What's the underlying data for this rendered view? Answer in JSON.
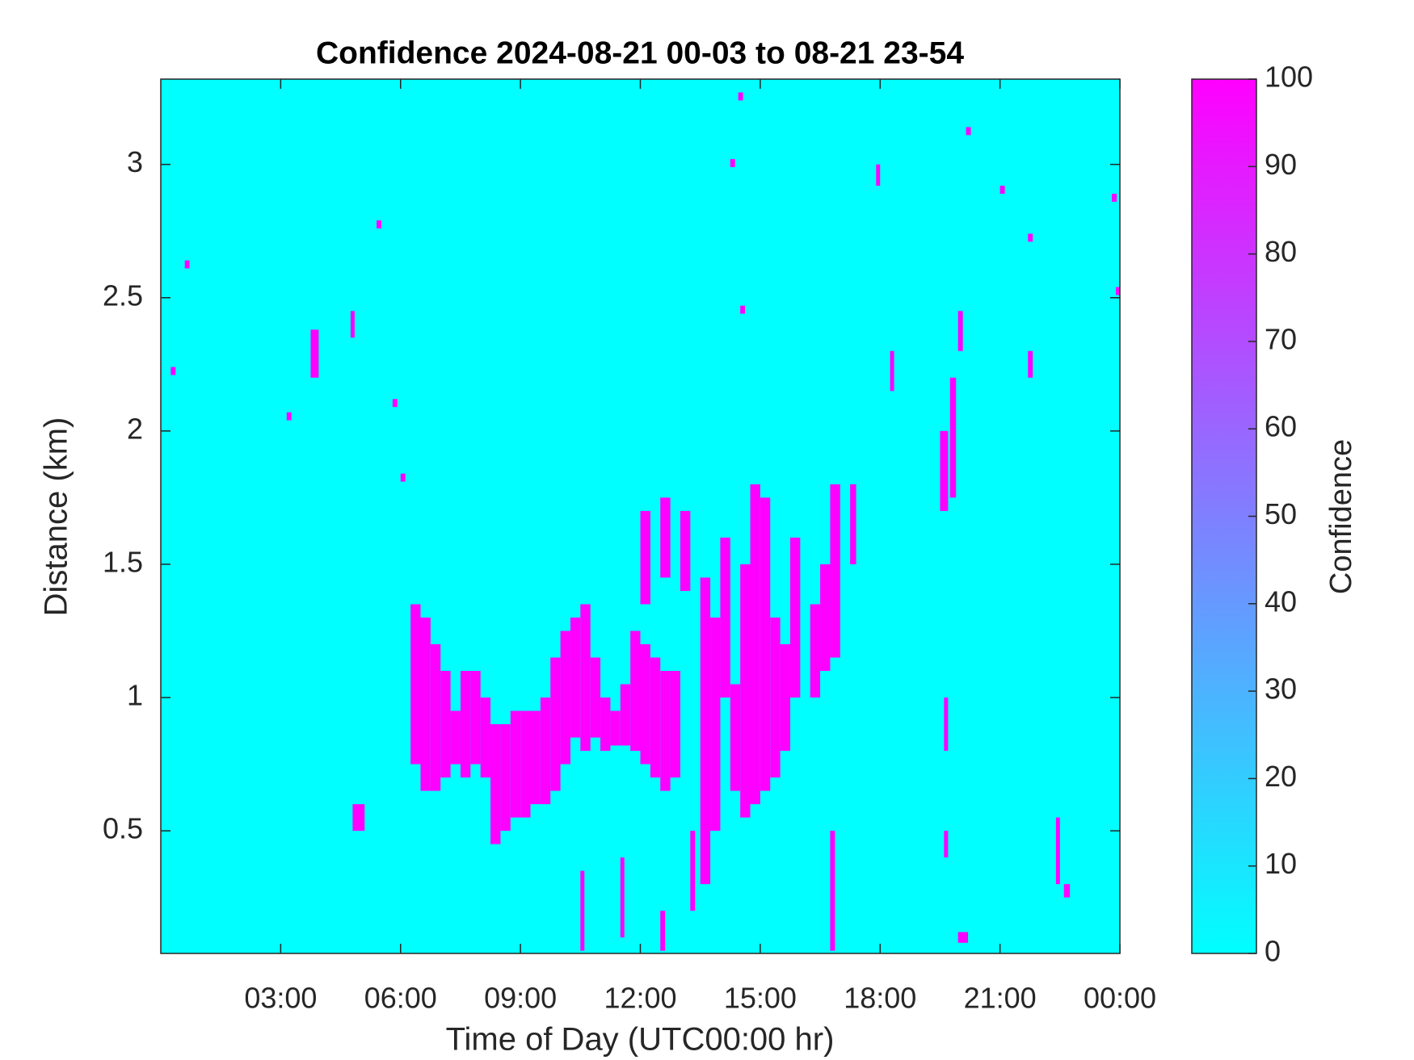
{
  "chart_data": {
    "type": "heatmap",
    "title": "Confidence 2024-08-21 00-03 to 08-21 23-54",
    "xlabel": "Time of Day (UTC00:00 hr)",
    "ylabel": "Distance (km)",
    "colorbar_label": "Confidence",
    "colormap": [
      "#00ffff",
      "#ff00ff"
    ],
    "clim": [
      0,
      100
    ],
    "colorbar_ticks": [
      0,
      10,
      20,
      30,
      40,
      50,
      60,
      70,
      80,
      90,
      100
    ],
    "xlim": [
      0,
      24
    ],
    "ylim": [
      0.04,
      3.32
    ],
    "xticks": [
      {
        "value": 3,
        "label": "03:00"
      },
      {
        "value": 6,
        "label": "06:00"
      },
      {
        "value": 9,
        "label": "09:00"
      },
      {
        "value": 12,
        "label": "12:00"
      },
      {
        "value": 15,
        "label": "15:00"
      },
      {
        "value": 18,
        "label": "18:00"
      },
      {
        "value": 21,
        "label": "21:00"
      },
      {
        "value": 24,
        "label": "00:00"
      }
    ],
    "yticks": [
      0.5,
      1,
      1.5,
      2,
      2.5,
      3
    ],
    "cells": [
      [
        6.25,
        6.5,
        0.75,
        1.35,
        100
      ],
      [
        6.5,
        6.75,
        0.65,
        1.3,
        100
      ],
      [
        6.75,
        7.0,
        0.65,
        1.2,
        100
      ],
      [
        7.0,
        7.25,
        0.7,
        1.1,
        100
      ],
      [
        7.25,
        7.5,
        0.75,
        0.95,
        100
      ],
      [
        7.5,
        7.75,
        0.7,
        1.1,
        100
      ],
      [
        7.75,
        8.0,
        0.75,
        1.1,
        100
      ],
      [
        8.0,
        8.25,
        0.7,
        1.0,
        100
      ],
      [
        8.25,
        8.5,
        0.45,
        0.9,
        100
      ],
      [
        8.5,
        8.75,
        0.5,
        0.9,
        100
      ],
      [
        8.75,
        9.0,
        0.55,
        0.95,
        100
      ],
      [
        9.0,
        9.25,
        0.55,
        0.95,
        100
      ],
      [
        9.25,
        9.5,
        0.6,
        0.95,
        100
      ],
      [
        9.5,
        9.75,
        0.6,
        1.0,
        100
      ],
      [
        9.75,
        10.0,
        0.65,
        1.15,
        100
      ],
      [
        10.0,
        10.25,
        0.75,
        1.25,
        100
      ],
      [
        10.25,
        10.5,
        0.85,
        1.3,
        100
      ],
      [
        10.5,
        10.75,
        0.8,
        1.35,
        100
      ],
      [
        10.75,
        11.0,
        0.85,
        1.15,
        100
      ],
      [
        11.0,
        11.25,
        0.8,
        1.0,
        100
      ],
      [
        11.25,
        11.5,
        0.82,
        0.95,
        100
      ],
      [
        11.5,
        11.75,
        0.82,
        1.05,
        100
      ],
      [
        11.75,
        12.0,
        0.8,
        1.25,
        100
      ],
      [
        12.0,
        12.25,
        0.75,
        1.2,
        100
      ],
      [
        12.25,
        12.5,
        0.7,
        1.15,
        100
      ],
      [
        12.5,
        12.75,
        0.65,
        1.1,
        100
      ],
      [
        12.75,
        13.0,
        0.7,
        1.1,
        100
      ],
      [
        12.0,
        12.25,
        1.35,
        1.7,
        100
      ],
      [
        12.5,
        12.75,
        1.45,
        1.75,
        100
      ],
      [
        13.0,
        13.25,
        1.4,
        1.7,
        100
      ],
      [
        13.5,
        13.75,
        0.3,
        1.45,
        100
      ],
      [
        13.75,
        14.0,
        0.5,
        1.3,
        100
      ],
      [
        14.0,
        14.25,
        1.0,
        1.6,
        100
      ],
      [
        14.25,
        14.5,
        0.65,
        1.05,
        100
      ],
      [
        14.5,
        14.75,
        0.55,
        1.5,
        100
      ],
      [
        14.75,
        15.0,
        0.6,
        1.8,
        100
      ],
      [
        15.0,
        15.25,
        0.65,
        1.75,
        100
      ],
      [
        15.25,
        15.5,
        0.7,
        1.3,
        100
      ],
      [
        15.5,
        15.75,
        0.8,
        1.2,
        100
      ],
      [
        15.75,
        16.0,
        1.0,
        1.6,
        100
      ],
      [
        16.25,
        16.5,
        1.0,
        1.35,
        100
      ],
      [
        16.5,
        16.75,
        1.1,
        1.5,
        100
      ],
      [
        16.75,
        17.0,
        1.15,
        1.8,
        100
      ],
      [
        17.25,
        17.4,
        1.5,
        1.8,
        100
      ],
      [
        19.5,
        19.7,
        1.7,
        2.0,
        100
      ],
      [
        19.75,
        19.9,
        1.75,
        2.2,
        100
      ],
      [
        19.6,
        19.7,
        0.8,
        1.0,
        100
      ],
      [
        19.6,
        19.7,
        0.4,
        0.5,
        100
      ],
      [
        3.75,
        3.95,
        2.2,
        2.38,
        100
      ],
      [
        4.75,
        4.85,
        2.35,
        2.45,
        100
      ],
      [
        4.8,
        5.1,
        0.5,
        0.6,
        100
      ],
      [
        0.25,
        0.37,
        2.21,
        2.24,
        100
      ],
      [
        0.6,
        0.72,
        2.61,
        2.64,
        100
      ],
      [
        3.15,
        3.27,
        2.04,
        2.07,
        100
      ],
      [
        5.4,
        5.52,
        2.76,
        2.79,
        100
      ],
      [
        5.8,
        5.92,
        2.09,
        2.12,
        100
      ],
      [
        6.0,
        6.12,
        1.81,
        1.84,
        100
      ],
      [
        14.45,
        14.57,
        3.24,
        3.27,
        100
      ],
      [
        14.25,
        14.37,
        2.99,
        3.02,
        100
      ],
      [
        17.9,
        18.0,
        2.92,
        3.0,
        100
      ],
      [
        20.15,
        20.27,
        3.11,
        3.14,
        100
      ],
      [
        21.0,
        21.12,
        2.89,
        2.92,
        100
      ],
      [
        21.7,
        21.82,
        2.71,
        2.74,
        100
      ],
      [
        23.8,
        23.92,
        2.86,
        2.89,
        100
      ],
      [
        23.9,
        24.0,
        2.51,
        2.54,
        100
      ],
      [
        14.5,
        14.62,
        2.44,
        2.47,
        100
      ],
      [
        19.95,
        20.07,
        2.3,
        2.45,
        100
      ],
      [
        18.25,
        18.35,
        2.15,
        2.3,
        100
      ],
      [
        21.7,
        21.82,
        2.2,
        2.3,
        100
      ],
      [
        22.4,
        22.5,
        0.3,
        0.55,
        100
      ],
      [
        22.6,
        22.75,
        0.25,
        0.3,
        100
      ],
      [
        13.25,
        13.37,
        0.2,
        0.5,
        100
      ],
      [
        11.5,
        11.6,
        0.1,
        0.4,
        100
      ],
      [
        10.5,
        10.6,
        0.05,
        0.35,
        100
      ],
      [
        12.5,
        12.62,
        0.05,
        0.2,
        100
      ],
      [
        16.75,
        16.87,
        0.05,
        0.5,
        100
      ],
      [
        19.95,
        20.2,
        0.08,
        0.12,
        100
      ]
    ]
  }
}
